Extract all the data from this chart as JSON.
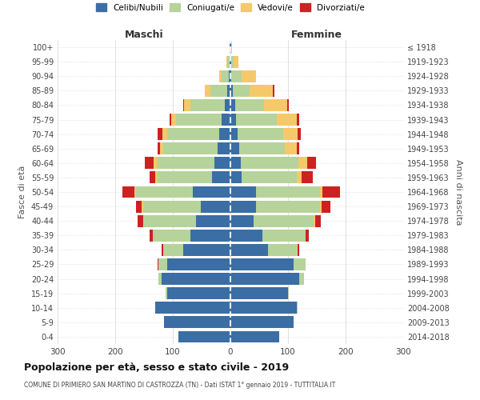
{
  "age_groups": [
    "0-4",
    "5-9",
    "10-14",
    "15-19",
    "20-24",
    "25-29",
    "30-34",
    "35-39",
    "40-44",
    "45-49",
    "50-54",
    "55-59",
    "60-64",
    "65-69",
    "70-74",
    "75-79",
    "80-84",
    "85-89",
    "90-94",
    "95-99",
    "100+"
  ],
  "birth_years": [
    "2014-2018",
    "2009-2013",
    "2004-2008",
    "1999-2003",
    "1994-1998",
    "1989-1993",
    "1984-1988",
    "1979-1983",
    "1974-1978",
    "1969-1973",
    "1964-1968",
    "1959-1963",
    "1954-1958",
    "1949-1953",
    "1944-1948",
    "1939-1943",
    "1934-1938",
    "1929-1933",
    "1924-1928",
    "1919-1923",
    "≤ 1918"
  ],
  "males": {
    "celibi": [
      90,
      115,
      130,
      110,
      120,
      110,
      82,
      70,
      60,
      52,
      65,
      32,
      28,
      22,
      20,
      15,
      10,
      5,
      3,
      1,
      1
    ],
    "coniugati": [
      0,
      0,
      0,
      2,
      5,
      15,
      35,
      65,
      90,
      100,
      100,
      95,
      100,
      95,
      90,
      80,
      60,
      30,
      12,
      4,
      1
    ],
    "vedovi": [
      0,
      0,
      0,
      1,
      0,
      0,
      0,
      0,
      1,
      2,
      2,
      3,
      5,
      5,
      8,
      8,
      10,
      10,
      5,
      2,
      0
    ],
    "divorziati": [
      0,
      0,
      0,
      0,
      0,
      2,
      3,
      5,
      10,
      10,
      20,
      10,
      15,
      5,
      8,
      3,
      2,
      0,
      0,
      0,
      0
    ]
  },
  "females": {
    "nubili": [
      85,
      110,
      115,
      100,
      120,
      110,
      65,
      55,
      40,
      45,
      45,
      20,
      18,
      15,
      12,
      10,
      8,
      4,
      2,
      1,
      1
    ],
    "coniugate": [
      0,
      0,
      2,
      2,
      8,
      20,
      50,
      75,
      105,
      110,
      110,
      95,
      100,
      80,
      80,
      70,
      50,
      30,
      18,
      5,
      1
    ],
    "vedove": [
      0,
      0,
      0,
      0,
      0,
      0,
      1,
      1,
      2,
      3,
      5,
      8,
      15,
      20,
      25,
      35,
      40,
      40,
      25,
      8,
      1
    ],
    "divorziate": [
      0,
      0,
      0,
      0,
      0,
      1,
      3,
      5,
      10,
      15,
      30,
      20,
      15,
      5,
      5,
      4,
      3,
      2,
      0,
      0,
      0
    ]
  },
  "colors": {
    "celibi": "#3a6ea5",
    "coniugati": "#b5d39b",
    "vedovi": "#f5c96a",
    "divorziati": "#cc2222"
  },
  "xlim": 300,
  "title": "Popolazione per età, sesso e stato civile - 2019",
  "subtitle": "COMUNE DI PRIMIERO SAN MARTINO DI CASTROZZA (TN) - Dati ISTAT 1° gennaio 2019 - TUTTITALIA.IT",
  "ylabel": "Fasce di età",
  "ylabel_right": "Anni di nascita",
  "legend_labels": [
    "Celibi/Nubili",
    "Coniugati/e",
    "Vedovi/e",
    "Divorziati/e"
  ]
}
